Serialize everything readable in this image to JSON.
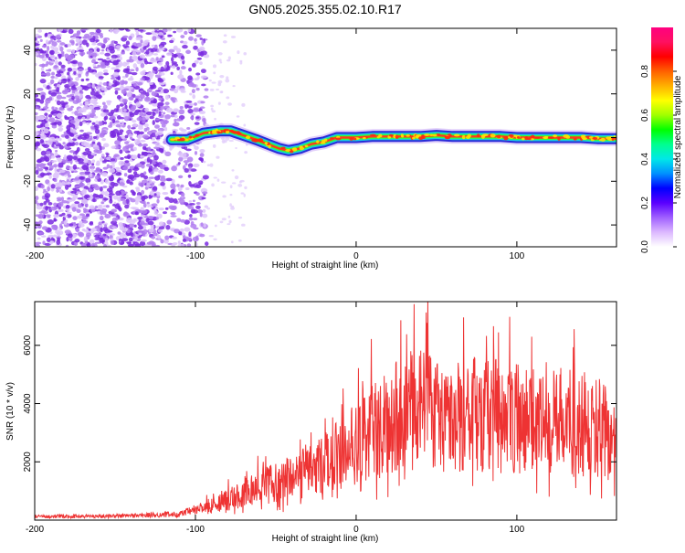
{
  "title": "GN05.2025.355.02.10.R17",
  "colors": {
    "axis": "#000000",
    "snr_line": "#ee3333",
    "scatter": "#7a2ae0",
    "track_outer": "#2a2ad8",
    "track_mid": "#19c8e0",
    "track_inner": "#33ff33",
    "track_core": "#ff3a1a"
  },
  "chart_data": [
    {
      "id": "spectrogram",
      "type": "heatmap",
      "xlabel": "Height of straight line (km)",
      "ylabel": "Frequency (Hz)",
      "xlim": [
        -200,
        162
      ],
      "ylim": [
        -50,
        50
      ],
      "xticks": [
        -200,
        -100,
        0,
        100
      ],
      "yticks": [
        -40,
        -20,
        0,
        20,
        40
      ],
      "colorbar": {
        "label": "Normalized spectral amplitude",
        "range": [
          0,
          1
        ],
        "ticks": [
          0.0,
          0.2,
          0.4,
          0.6,
          0.8
        ],
        "tick_labels": [
          "0.0",
          "0.2",
          "0.4",
          "0.6",
          "0.8"
        ],
        "colors": [
          "#ffffff",
          "#dcb8ff",
          "#a060ff",
          "#5a00ff",
          "#0000ff",
          "#0090ff",
          "#00e8e8",
          "#00ff90",
          "#00ff00",
          "#a0ff00",
          "#ffff00",
          "#ffb000",
          "#ff6000",
          "#ff0000",
          "#ff1060",
          "#ff0080"
        ]
      },
      "noise_region_x": [
        -200,
        -93
      ],
      "track": {
        "x": [
          -115,
          -105,
          -95,
          -85,
          -78,
          -70,
          -62,
          -55,
          -48,
          -42,
          -35,
          -28,
          -20,
          -12,
          -5,
          0,
          10,
          20,
          30,
          40,
          50,
          60,
          70,
          80,
          90,
          100,
          110,
          120,
          130,
          140,
          150,
          162
        ],
        "y": [
          -1,
          -1,
          2,
          3,
          3,
          1,
          -1,
          -3,
          -5,
          -6,
          -5,
          -3,
          -2,
          0,
          0,
          0,
          0.5,
          0.5,
          0.5,
          0.5,
          1,
          0.5,
          0.5,
          0.5,
          0.5,
          0,
          0,
          0,
          0,
          0,
          -0.5,
          -0.5
        ]
      }
    },
    {
      "id": "snr",
      "type": "line",
      "xlabel": "Height of straight line (km)",
      "ylabel": "SNR (10 * v/v)",
      "xlim": [
        -200,
        162
      ],
      "ylim": [
        0,
        7500
      ],
      "xticks": [
        -200,
        -100,
        0,
        100
      ],
      "yticks": [
        2000,
        4000,
        6000
      ],
      "envelope": {
        "x": [
          -200,
          -150,
          -110,
          -90,
          -80,
          -70,
          -60,
          -50,
          -40,
          -30,
          -20,
          -10,
          0,
          10,
          20,
          30,
          40,
          50,
          60,
          80,
          100,
          120,
          140,
          150,
          155,
          158,
          162
        ],
        "y": [
          120,
          140,
          200,
          500,
          700,
          900,
          1100,
          1300,
          1500,
          1700,
          1900,
          2300,
          2700,
          3100,
          3400,
          3700,
          3800,
          3700,
          3600,
          3600,
          3500,
          3500,
          3300,
          3200,
          3000,
          2500,
          3200
        ]
      }
    }
  ]
}
